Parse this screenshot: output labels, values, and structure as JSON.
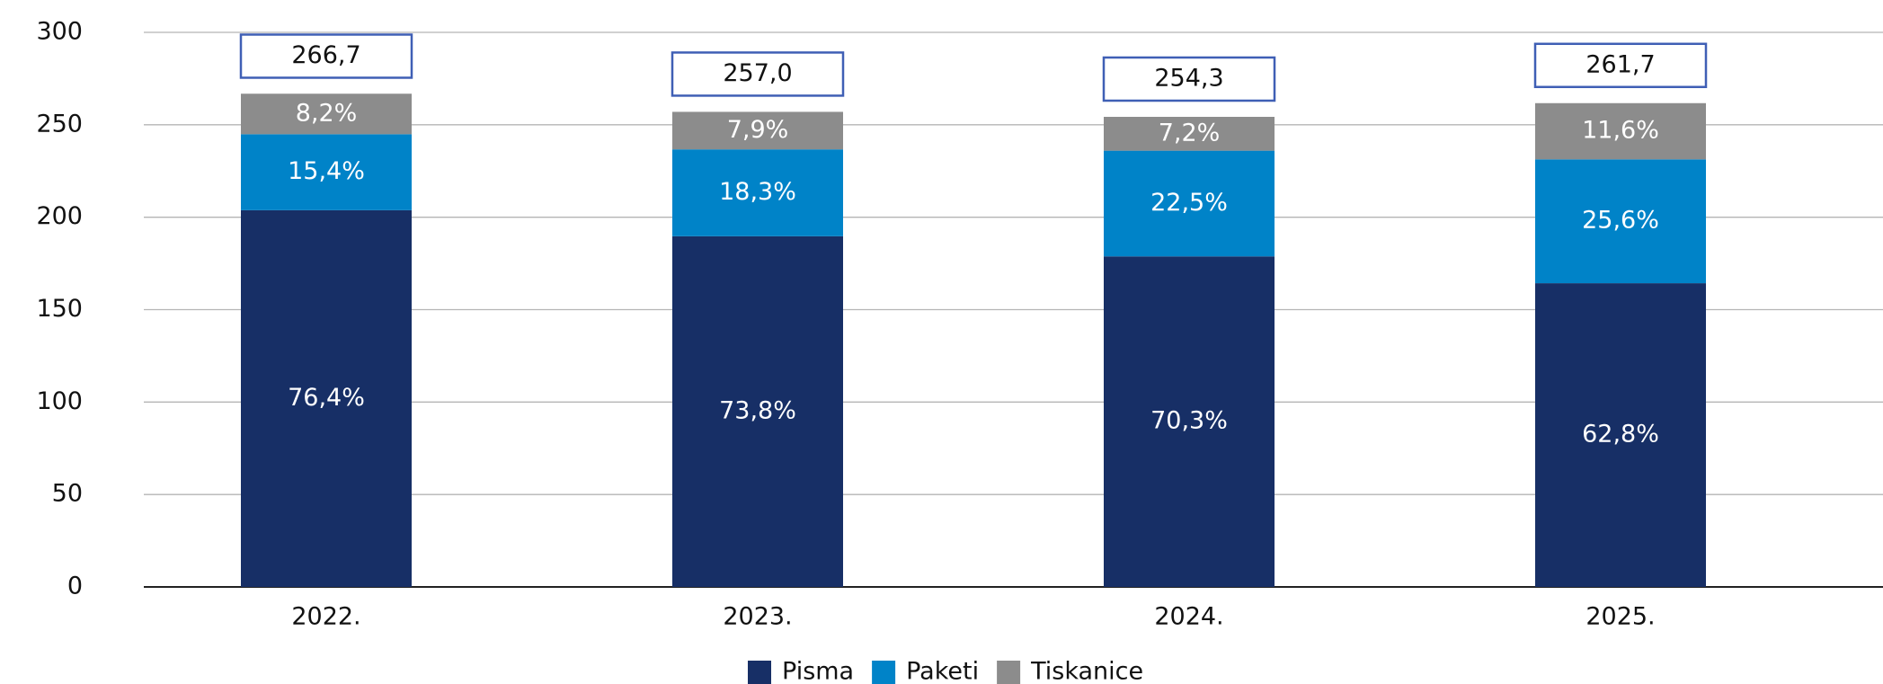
{
  "chart_data": {
    "type": "stacked_bar",
    "categories": [
      "2022.",
      "2023.",
      "2024.",
      "2025."
    ],
    "series": [
      {
        "name": "Pisma",
        "color": "#172f66",
        "values": [
          203.8,
          189.7,
          178.8,
          164.3
        ],
        "value_labels": [
          "76,4%",
          "73,8%",
          "70,3%",
          "62,8%"
        ]
      },
      {
        "name": "Paketi",
        "color": "#0083c8",
        "values": [
          41.1,
          47.0,
          57.2,
          67.0
        ],
        "value_labels": [
          "15,4%",
          "18,3%",
          "22,5%",
          "25,6%"
        ]
      },
      {
        "name": "Tiskanice",
        "color": "#8c8c8c",
        "values": [
          21.9,
          20.3,
          18.3,
          30.4
        ],
        "value_labels": [
          "8,2%",
          "7,9%",
          "7,2%",
          "11,6%"
        ]
      }
    ],
    "totals": [
      266.7,
      257.0,
      254.3,
      261.7
    ],
    "total_labels": [
      "266,7",
      "257,0",
      "254,3",
      "261,7"
    ],
    "total_box_color": "#3f5fb5",
    "ylim": [
      0,
      300
    ],
    "yticks": [
      0,
      50,
      100,
      150,
      200,
      250,
      300
    ],
    "grid": true,
    "legend": "bottom"
  }
}
